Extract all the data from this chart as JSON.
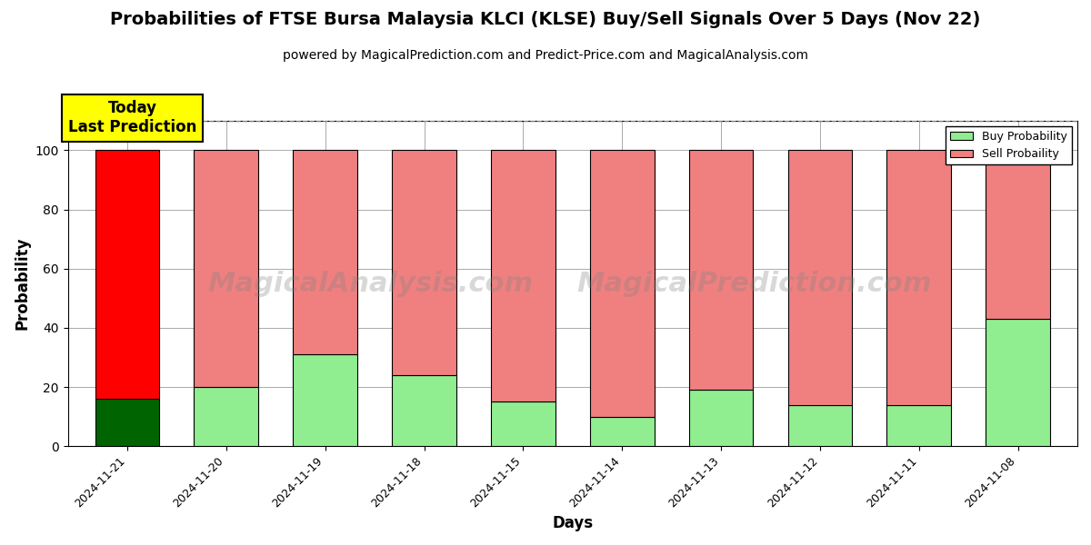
{
  "title": "Probabilities of FTSE Bursa Malaysia KLCI (KLSE) Buy/Sell Signals Over 5 Days (Nov 22)",
  "subtitle": "powered by MagicalPrediction.com and Predict-Price.com and MagicalAnalysis.com",
  "xlabel": "Days",
  "ylabel": "Probability",
  "categories": [
    "2024-11-21",
    "2024-11-20",
    "2024-11-19",
    "2024-11-18",
    "2024-11-15",
    "2024-11-14",
    "2024-11-13",
    "2024-11-12",
    "2024-11-11",
    "2024-11-08"
  ],
  "buy_values": [
    16,
    20,
    31,
    24,
    15,
    10,
    19,
    14,
    14,
    43
  ],
  "sell_values": [
    84,
    80,
    69,
    76,
    85,
    90,
    81,
    86,
    86,
    57
  ],
  "buy_color_today": "#006400",
  "sell_color_today": "#FF0000",
  "buy_color_rest": "#90EE90",
  "sell_color_rest": "#F08080",
  "bar_edge_color": "black",
  "bar_edge_width": 0.8,
  "today_label_bg": "#FFFF00",
  "today_label_text": "Today\nLast Prediction",
  "watermark_text1": "MagicalAnalysis.com",
  "watermark_text2": "MagicalPrediction.com",
  "ylim": [
    0,
    110
  ],
  "dashed_line_y": 110,
  "grid_color": "#AAAAAA",
  "legend_buy_label": "Buy Probability",
  "legend_sell_label": "Sell Probaility",
  "figsize": [
    12,
    6
  ],
  "dpi": 100,
  "bar_width": 0.65
}
